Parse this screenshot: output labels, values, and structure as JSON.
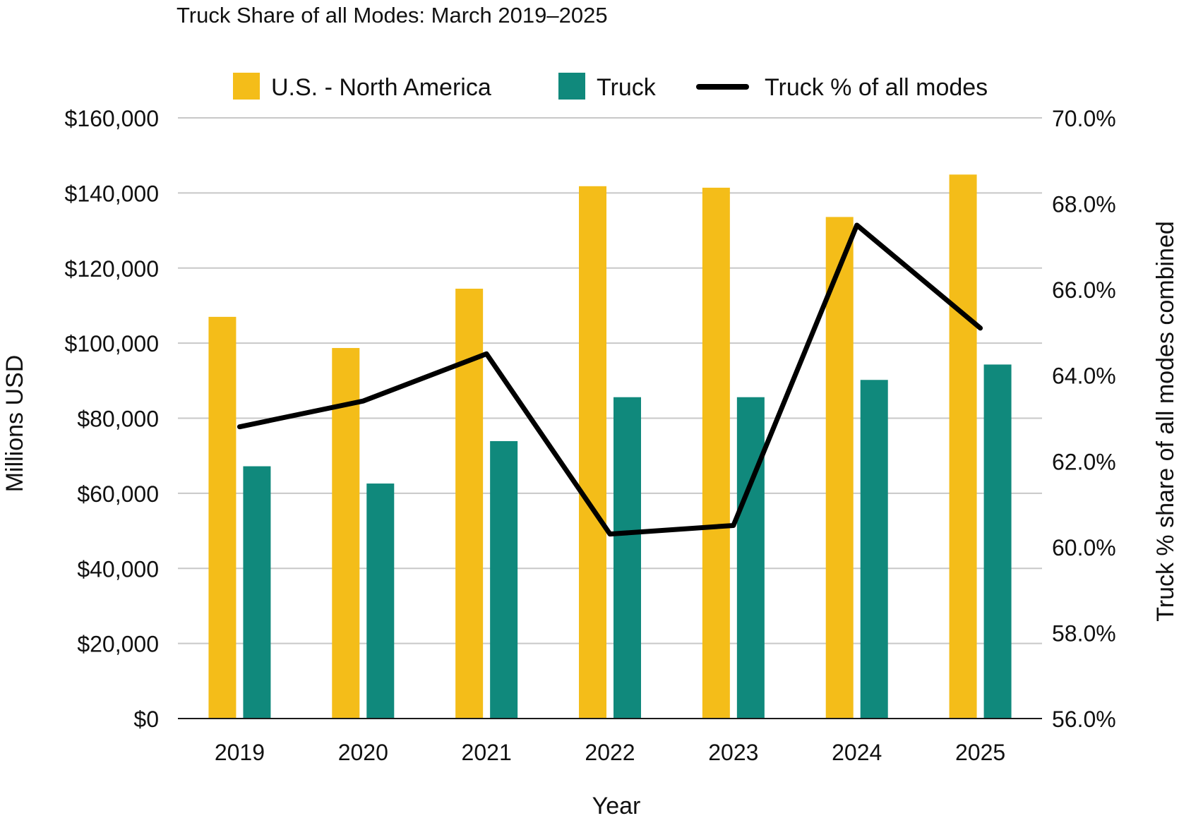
{
  "chart_data": {
    "type": "bar",
    "title": "Truck Share of all Modes: March 2019–2025",
    "xlabel": "Year",
    "ylabel": "Millions USD",
    "y2label": "Truck % share of all modes combined",
    "categories": [
      "2019",
      "2020",
      "2021",
      "2022",
      "2023",
      "2024",
      "2025"
    ],
    "ylim": [
      0,
      160000
    ],
    "y_ticks": [
      0,
      20000,
      40000,
      60000,
      80000,
      100000,
      120000,
      140000,
      160000
    ],
    "y_tick_labels": [
      "$0",
      "$20,000",
      "$40,000",
      "$60,000",
      "$80,000",
      "$100,000",
      "$120,000",
      "$140,000",
      "$160,000"
    ],
    "y2lim": [
      56,
      70
    ],
    "y2_ticks": [
      56,
      58,
      60,
      62,
      64,
      66,
      68,
      70
    ],
    "y2_tick_labels": [
      "56.0%",
      "58.0%",
      "60.0%",
      "62.0%",
      "64.0%",
      "66.0%",
      "68.0%",
      "70.0%"
    ],
    "grid": true,
    "legend_position": "top",
    "series": [
      {
        "name": "U.S. - North America",
        "type": "bar",
        "axis": "left",
        "color": "#F4BD19",
        "values": [
          107000,
          98700,
          114500,
          141800,
          141400,
          133600,
          144900
        ]
      },
      {
        "name": "Truck",
        "type": "bar",
        "axis": "left",
        "color": "#10897C",
        "values": [
          67200,
          62600,
          73900,
          85600,
          85600,
          90200,
          94300
        ]
      },
      {
        "name": "Truck % of all modes",
        "type": "line",
        "axis": "right",
        "color": "#000000",
        "values": [
          62.8,
          63.4,
          64.5,
          60.3,
          60.5,
          67.5,
          65.1
        ]
      }
    ]
  }
}
